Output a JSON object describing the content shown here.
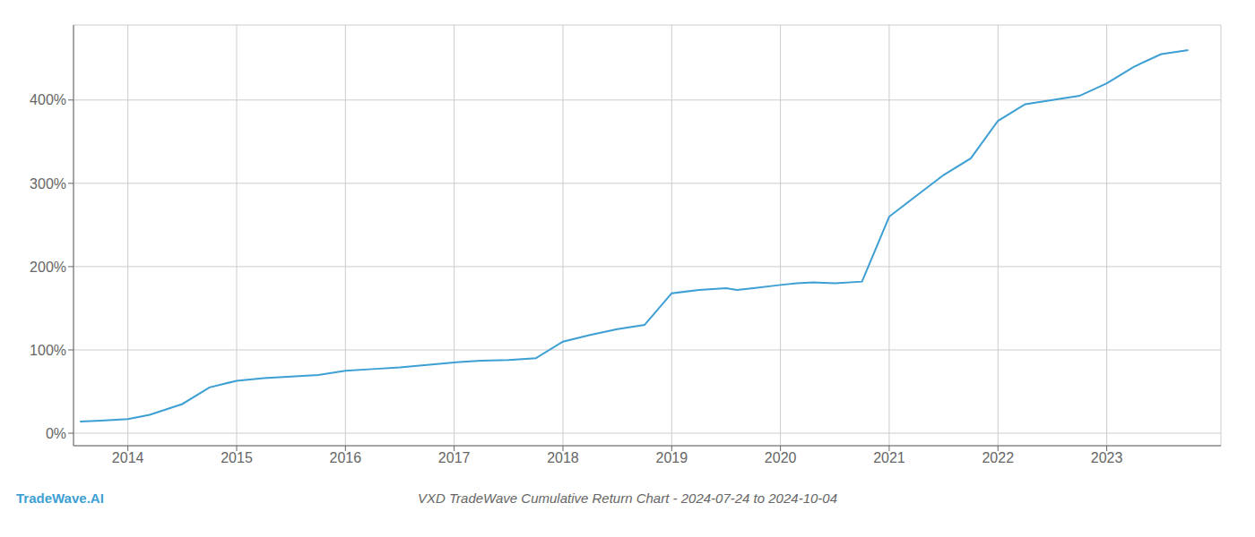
{
  "chart_data": {
    "type": "line",
    "title": "VXD TradeWave Cumulative Return Chart - 2024-07-24 to 2024-10-04",
    "annotations": [
      {
        "text": "TradeWave.AI",
        "color": "#3d9fd3"
      }
    ],
    "x": [
      2013.56,
      2013.75,
      2014.0,
      2014.2,
      2014.5,
      2014.75,
      2015.0,
      2015.25,
      2015.5,
      2015.75,
      2016.0,
      2016.25,
      2016.5,
      2016.75,
      2017.0,
      2017.25,
      2017.5,
      2017.75,
      2018.0,
      2018.25,
      2018.5,
      2018.75,
      2019.0,
      2019.25,
      2019.5,
      2019.6,
      2019.75,
      2020.0,
      2020.15,
      2020.3,
      2020.5,
      2020.75,
      2021.0,
      2021.25,
      2021.5,
      2021.75,
      2022.0,
      2022.25,
      2022.5,
      2022.75,
      2023.0,
      2023.25,
      2023.5,
      2023.75
    ],
    "values": [
      14,
      15,
      17,
      22,
      35,
      55,
      63,
      66,
      68,
      70,
      75,
      77,
      79,
      82,
      85,
      87,
      88,
      90,
      110,
      118,
      125,
      130,
      168,
      172,
      174,
      172,
      174,
      178,
      180,
      181,
      180,
      182,
      260,
      285,
      310,
      330,
      375,
      395,
      400,
      405,
      420,
      440,
      455,
      460
    ],
    "color": "#3d9fd3",
    "xlim": [
      2013.5,
      2024.05
    ],
    "xticks": [
      2014,
      2015,
      2016,
      2017,
      2018,
      2019,
      2020,
      2021,
      2022,
      2023
    ],
    "ylim": [
      -15,
      490
    ],
    "yticks": [
      {
        "value": 0,
        "label": "0%"
      },
      {
        "value": 100,
        "label": "100%"
      },
      {
        "value": 200,
        "label": "200%"
      },
      {
        "value": 300,
        "label": "300%"
      },
      {
        "value": 400,
        "label": "400%"
      }
    ],
    "grid": true
  }
}
